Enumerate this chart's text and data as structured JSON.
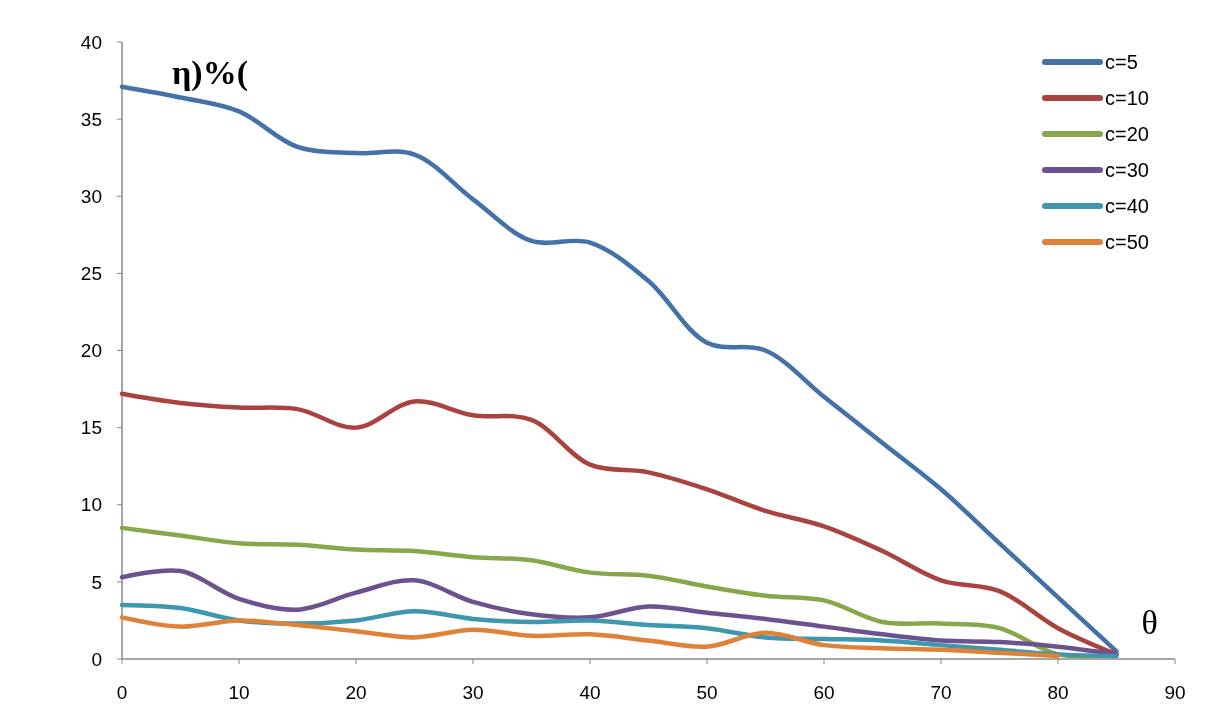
{
  "chart_data": {
    "type": "line",
    "xlabel": "θ",
    "ylabel": "η)%(",
    "x": [
      0,
      5,
      10,
      15,
      20,
      25,
      30,
      35,
      40,
      45,
      50,
      55,
      60,
      65,
      70,
      75,
      80,
      85
    ],
    "xlim": [
      0,
      90
    ],
    "xticks": [
      0,
      10,
      20,
      30,
      40,
      50,
      60,
      70,
      80,
      90
    ],
    "ylim": [
      0,
      40
    ],
    "yticks": [
      0,
      5,
      10,
      15,
      20,
      25,
      30,
      35,
      40
    ],
    "grid": false,
    "legend": "top right",
    "line_style": "solid",
    "marker": "none",
    "series": [
      {
        "name": "c=5",
        "color": "#4472a8",
        "values": [
          37.1,
          36.4,
          35.5,
          33.2,
          32.8,
          32.7,
          29.8,
          27.1,
          27,
          24.5,
          20.5,
          20,
          17,
          14,
          11,
          7.5,
          4,
          0.5
        ]
      },
      {
        "name": "c=10",
        "color": "#a94340",
        "values": [
          17.2,
          16.6,
          16.3,
          16.2,
          15,
          16.7,
          15.8,
          15.5,
          12.6,
          12.1,
          11,
          9.6,
          8.6,
          7,
          5.1,
          4.4,
          2,
          0.3
        ]
      },
      {
        "name": "c=20",
        "color": "#86a84a",
        "values": [
          8.5,
          8,
          7.5,
          7.4,
          7.1,
          7,
          6.6,
          6.4,
          5.6,
          5.4,
          4.7,
          4.1,
          3.8,
          2.4,
          2.3,
          2,
          0.3,
          0.3
        ]
      },
      {
        "name": "c=30",
        "color": "#6d5290",
        "values": [
          5.3,
          5.7,
          3.9,
          3.2,
          4.3,
          5.1,
          3.7,
          2.9,
          2.7,
          3.4,
          3,
          2.6,
          2.1,
          1.6,
          1.2,
          1.1,
          0.8,
          0.3
        ]
      },
      {
        "name": "c=40",
        "color": "#3d97af",
        "values": [
          3.5,
          3.3,
          2.5,
          2.3,
          2.5,
          3.1,
          2.6,
          2.4,
          2.5,
          2.2,
          2,
          1.4,
          1.3,
          1.2,
          0.9,
          0.6,
          0.3,
          0.2
        ]
      },
      {
        "name": "c=50",
        "color": "#de8237",
        "values": [
          2.7,
          2.1,
          2.5,
          2.2,
          1.8,
          1.4,
          1.9,
          1.5,
          1.6,
          1.2,
          0.8,
          1.7,
          0.9,
          0.7,
          0.6,
          0.4,
          0.2,
          null
        ]
      }
    ]
  }
}
